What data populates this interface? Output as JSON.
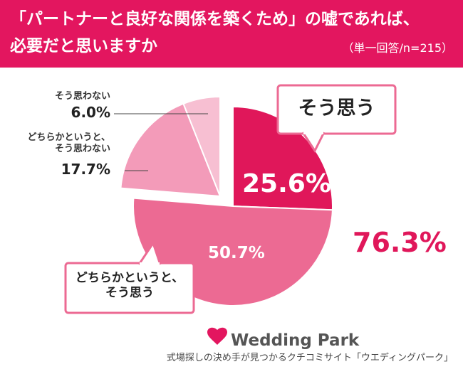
{
  "chart_data": {
    "type": "pie",
    "title": "「パートナーと良好な関係を築くため」の嘘であれば、\n必要だと思いますか",
    "subtitle": "（単一回答/n=215）",
    "categories": [
      "そう思う",
      "どちらかというと、\nそう思う",
      "どちらかというと、\nそう思わない",
      "そう思わない"
    ],
    "values": [
      25.6,
      50.7,
      17.7,
      6.0
    ],
    "value_labels": [
      "25.6%",
      "50.7%",
      "17.7%",
      "6.0%"
    ],
    "colors": [
      "#e0175a",
      "#ec6a93",
      "#f39bb9",
      "#f7bfd2"
    ],
    "annotation": "76.3%",
    "brand": "Wedding Park",
    "footer": "式場探しの決め手が見つかるクチコミサイト「ウエディングパーク」"
  }
}
